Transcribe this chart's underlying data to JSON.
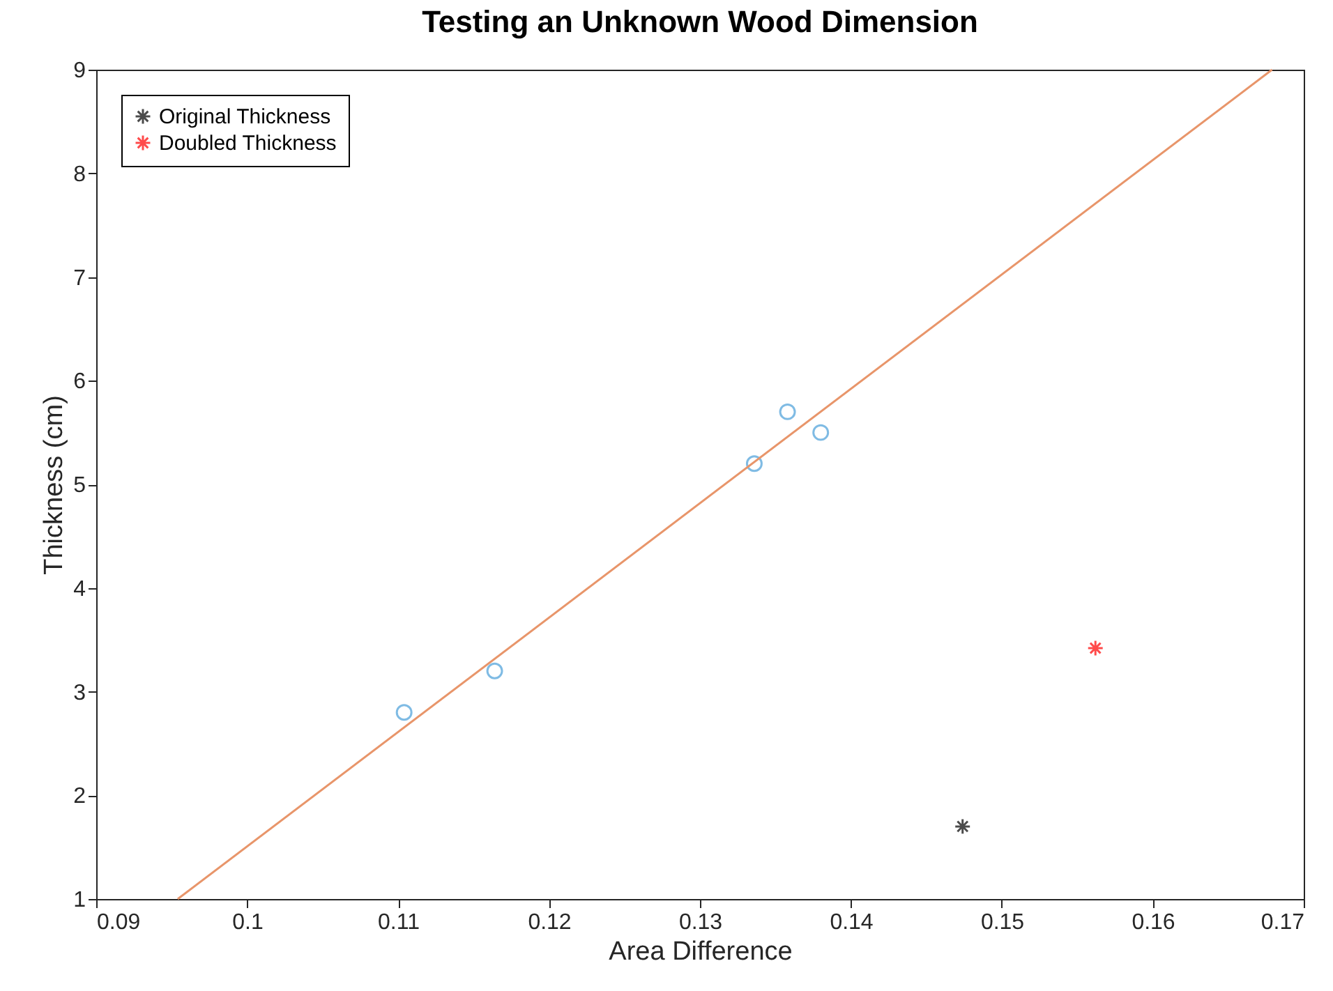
{
  "chart_data": {
    "type": "scatter",
    "title": "Testing an Unknown Wood Dimension",
    "xlabel": "Area Difference",
    "ylabel": "Thickness (cm)",
    "xlim": [
      0.09,
      0.17
    ],
    "xticks": [
      0.09,
      0.1,
      0.11,
      0.12,
      0.13,
      0.14,
      0.15,
      0.16,
      0.17
    ],
    "ylim": [
      1,
      9
    ],
    "yticks": [
      1,
      2,
      3,
      4,
      5,
      6,
      7,
      8,
      9
    ],
    "grid": false,
    "legend": "top left",
    "series": [
      {
        "marker": "circle",
        "color": "#4a9fd9",
        "x": [
          0.1104,
          0.1164,
          0.1336,
          0.1358,
          0.138
        ],
        "values": [
          2.8,
          3.2,
          5.2,
          5.7,
          5.5
        ]
      },
      {
        "type": "line",
        "line_style": "solid",
        "color": "#e8956a",
        "x": [
          0.0954,
          0.1679
        ],
        "values": [
          1,
          9
        ]
      },
      {
        "marker": "cross",
        "name": "Original Thickness",
        "color": "#000000",
        "x": [
          0.1474
        ],
        "values": [
          1.7
        ]
      },
      {
        "marker": "cross",
        "name": "Doubled Thickness",
        "color": "#ff0000",
        "x": [
          0.1562
        ],
        "values": [
          3.42
        ]
      }
    ]
  }
}
